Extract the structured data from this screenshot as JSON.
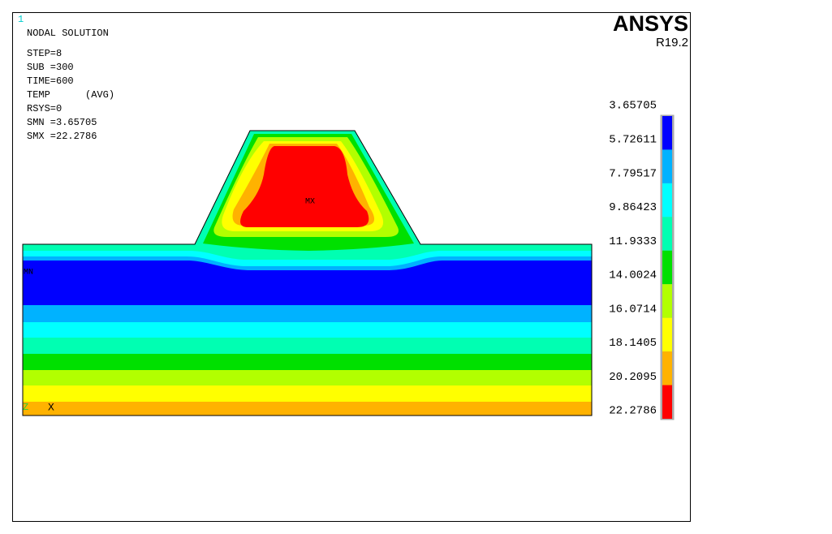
{
  "window_number": "1",
  "info": [
    "NODAL SOLUTION",
    "STEP=8",
    "SUB =300",
    "TIME=600",
    "TEMP      (AVG)",
    "RSYS=0",
    "SMN =3.65705",
    "SMX =22.2786"
  ],
  "logo": {
    "name": "ANSYS",
    "version": "R19.2"
  },
  "legend": {
    "levels": [
      "3.65705",
      "5.72611",
      "7.79517",
      "9.86423",
      "11.9333",
      "14.0024",
      "16.0714",
      "18.1405",
      "20.2095",
      "22.2786"
    ],
    "colors": [
      "#0000ff",
      "#00b2ff",
      "#00ffff",
      "#00ffb2",
      "#00e000",
      "#b2ff00",
      "#ffff00",
      "#ffb200",
      "#ff0000"
    ]
  },
  "labels": {
    "max": "MX",
    "min": "MN",
    "axis_z": "Z",
    "axis_x": "X"
  }
}
